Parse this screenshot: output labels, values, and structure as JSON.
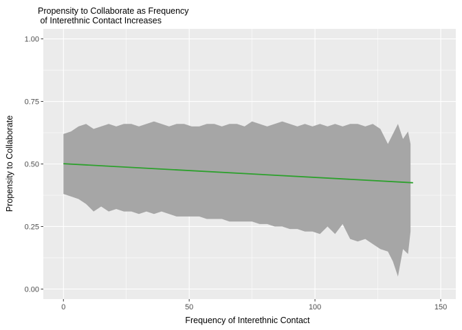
{
  "chart_data": {
    "type": "line",
    "title_lines": [
      "Propensity to Collaborate as Frequency",
      " of Interethnic Contact Increases"
    ],
    "xlabel": "Frequency of Interethnic Contact",
    "ylabel": "Propensity to Collaborate",
    "xlim": [
      -8,
      156
    ],
    "ylim": [
      -0.04,
      1.04
    ],
    "x_ticks": [
      0,
      50,
      100,
      150
    ],
    "x_tick_labels": [
      "0",
      "50",
      "100",
      "150"
    ],
    "y_ticks": [
      0.0,
      0.25,
      0.5,
      0.75,
      1.0
    ],
    "y_tick_labels": [
      "0.00",
      "0.25",
      "0.50",
      "0.75",
      "1.00"
    ],
    "grid": true,
    "series": [
      {
        "kind": "line",
        "color": "#2ca02c",
        "x": [
          0,
          139
        ],
        "y": [
          0.501,
          0.425
        ]
      },
      {
        "kind": "ribbon",
        "color": "#a6a6a6",
        "x": [
          0,
          3,
          6,
          9,
          12,
          15,
          18,
          21,
          24,
          27,
          30,
          33,
          36,
          39,
          42,
          45,
          48,
          51,
          54,
          57,
          60,
          63,
          66,
          69,
          72,
          75,
          78,
          81,
          84,
          87,
          90,
          93,
          96,
          99,
          102,
          105,
          108,
          111,
          114,
          117,
          120,
          123,
          126,
          129,
          131,
          133,
          135,
          137,
          138
        ],
        "upper": [
          0.62,
          0.63,
          0.65,
          0.66,
          0.64,
          0.65,
          0.66,
          0.65,
          0.66,
          0.66,
          0.65,
          0.66,
          0.67,
          0.66,
          0.65,
          0.66,
          0.66,
          0.65,
          0.65,
          0.66,
          0.66,
          0.65,
          0.66,
          0.66,
          0.65,
          0.67,
          0.66,
          0.65,
          0.66,
          0.67,
          0.66,
          0.65,
          0.66,
          0.65,
          0.66,
          0.65,
          0.66,
          0.65,
          0.66,
          0.66,
          0.65,
          0.66,
          0.64,
          0.58,
          0.62,
          0.66,
          0.6,
          0.63,
          0.58
        ],
        "lower": [
          0.38,
          0.37,
          0.36,
          0.34,
          0.31,
          0.33,
          0.31,
          0.32,
          0.31,
          0.31,
          0.3,
          0.31,
          0.3,
          0.31,
          0.3,
          0.29,
          0.29,
          0.29,
          0.29,
          0.28,
          0.28,
          0.28,
          0.27,
          0.27,
          0.27,
          0.27,
          0.26,
          0.26,
          0.25,
          0.25,
          0.24,
          0.24,
          0.23,
          0.23,
          0.22,
          0.25,
          0.22,
          0.26,
          0.2,
          0.19,
          0.2,
          0.18,
          0.16,
          0.15,
          0.11,
          0.05,
          0.16,
          0.14,
          0.23
        ]
      }
    ]
  }
}
